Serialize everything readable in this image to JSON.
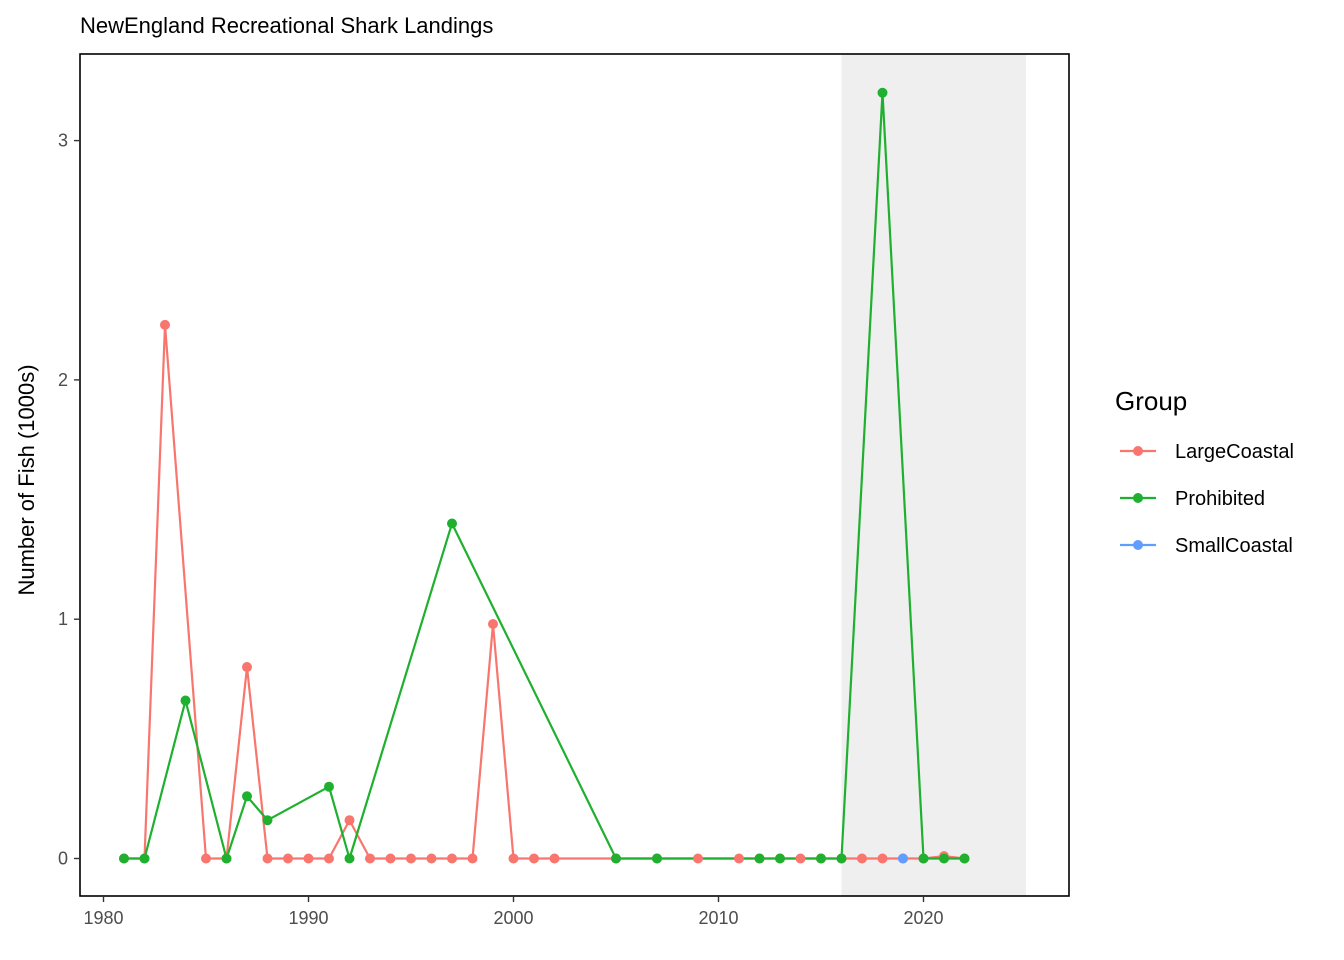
{
  "chart_data": {
    "type": "line",
    "title": "NewEngland Recreational Shark Landings",
    "xlabel": "",
    "ylabel": "Number of Fish (1000s)",
    "xlim": [
      1980,
      2025
    ],
    "ylim": [
      0,
      3.2
    ],
    "x_ticks": [
      1980,
      1990,
      2000,
      2010,
      2020
    ],
    "y_ticks": [
      0,
      1,
      2,
      3
    ],
    "highlight_range": [
      2016,
      2025
    ],
    "highlight_color": "#efefef",
    "grid": false,
    "legend_title": "Group",
    "legend_position": "right",
    "series": [
      {
        "name": "LargeCoastal",
        "color": "#f8766d",
        "points": [
          [
            1981,
            0
          ],
          [
            1982,
            0
          ],
          [
            1983,
            2.23
          ],
          [
            1985,
            0
          ],
          [
            1986,
            0
          ],
          [
            1987,
            0.8
          ],
          [
            1988,
            0
          ],
          [
            1989,
            0
          ],
          [
            1990,
            0
          ],
          [
            1991,
            0
          ],
          [
            1992,
            0.16
          ],
          [
            1993,
            0
          ],
          [
            1994,
            0
          ],
          [
            1995,
            0
          ],
          [
            1996,
            0
          ],
          [
            1997,
            0
          ],
          [
            1998,
            0
          ],
          [
            1999,
            0.98
          ],
          [
            2000,
            0
          ],
          [
            2001,
            0
          ],
          [
            2002,
            0
          ],
          [
            2005,
            0
          ],
          [
            2007,
            0
          ],
          [
            2009,
            0
          ],
          [
            2011,
            0
          ],
          [
            2012,
            0
          ],
          [
            2013,
            0
          ],
          [
            2014,
            0
          ],
          [
            2015,
            0
          ],
          [
            2016,
            0
          ],
          [
            2017,
            0
          ],
          [
            2018,
            0
          ],
          [
            2019,
            0
          ],
          [
            2020,
            0
          ],
          [
            2021,
            0.01
          ],
          [
            2022,
            0
          ]
        ]
      },
      {
        "name": "Prohibited",
        "color": "#1fb02f",
        "points": [
          [
            1981,
            0
          ],
          [
            1982,
            0
          ],
          [
            1984,
            0.66
          ],
          [
            1986,
            0
          ],
          [
            1987,
            0.26
          ],
          [
            1988,
            0.16
          ],
          [
            1991,
            0.3
          ],
          [
            1992,
            0
          ],
          [
            1997,
            1.4
          ],
          [
            2005,
            0
          ],
          [
            2007,
            0
          ],
          [
            2012,
            0
          ],
          [
            2013,
            0
          ],
          [
            2015,
            0
          ],
          [
            2016,
            0
          ],
          [
            2018,
            3.2
          ],
          [
            2020,
            0
          ],
          [
            2021,
            0
          ],
          [
            2022,
            0
          ]
        ]
      },
      {
        "name": "SmallCoastal",
        "color": "#619cff",
        "points": [
          [
            2019,
            0
          ]
        ]
      }
    ]
  }
}
